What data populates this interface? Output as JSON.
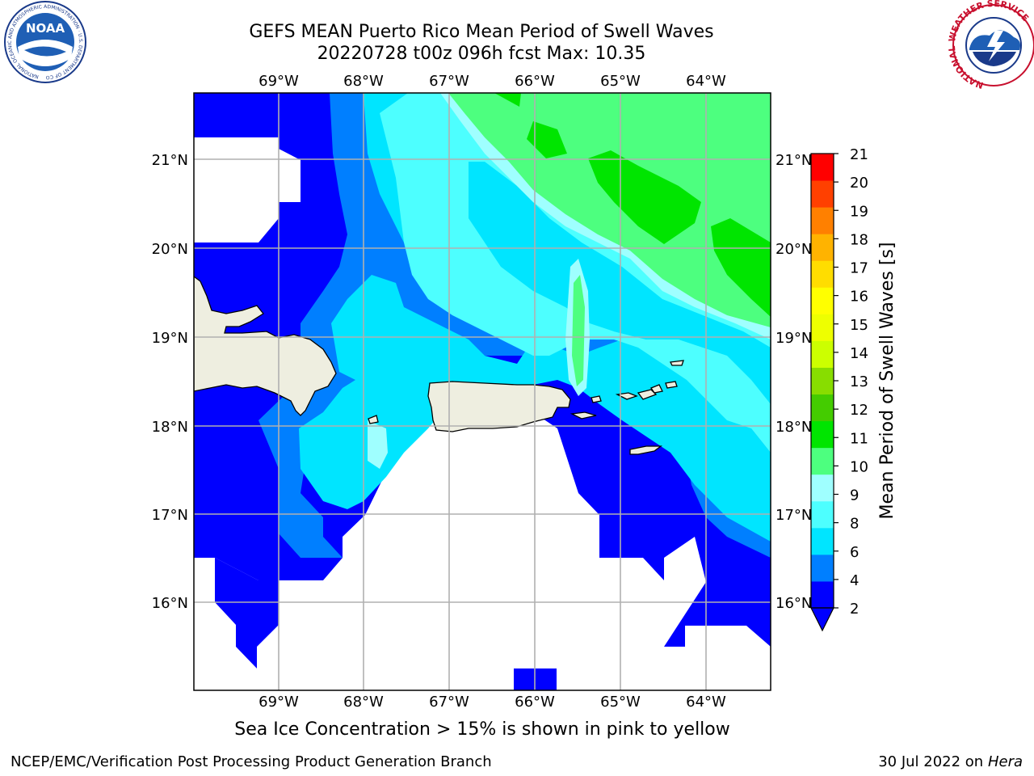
{
  "header": {
    "title_line1": "GEFS MEAN Puerto Rico Mean Period of Swell Waves",
    "title_line2": "20220728 t00z 096h fcst   Max: 10.35"
  },
  "logos": {
    "left": {
      "name": "noaa-logo",
      "text": "NOAA",
      "ring_text": "NATIONAL OCEANIC AND ATMOSPHERIC ADMINISTRATION · U.S. DEPARTMENT OF COMMERCE"
    },
    "right": {
      "name": "nws-logo",
      "ring_text": "NATIONAL WEATHER SERVICE"
    }
  },
  "map": {
    "lon_labels": [
      "69°W",
      "68°W",
      "67°W",
      "66°W",
      "65°W",
      "64°W"
    ],
    "lat_labels": [
      "21°N",
      "20°N",
      "19°N",
      "18°N",
      "17°N",
      "16°N"
    ],
    "lon_range": [
      -70.0,
      -63.25
    ],
    "lat_range": [
      15.0,
      21.75
    ],
    "land_color": "#eeeee0",
    "gridlines": true
  },
  "colorbar": {
    "label": "Mean Period of Swell Waves [s]",
    "ticks": [
      "21",
      "20",
      "19",
      "18",
      "17",
      "16",
      "15",
      "14",
      "13",
      "12",
      "11",
      "10",
      "9",
      "8",
      "6",
      "4",
      "2"
    ],
    "levels": [
      2,
      4,
      6,
      8,
      9,
      10,
      11,
      12,
      13,
      14,
      15,
      16,
      17,
      18,
      19,
      20,
      21
    ],
    "colors": [
      "#0000ff",
      "#007fff",
      "#00e5ff",
      "#4dffff",
      "#9fffff",
      "#4dff7f",
      "#00e500",
      "#44cc00",
      "#88dd00",
      "#ccff00",
      "#eeff00",
      "#ffff00",
      "#ffdd00",
      "#ffb300",
      "#ff8000",
      "#ff4000",
      "#ff0000"
    ],
    "extend_min_color": "#0000ff"
  },
  "note": "Sea Ice Concentration > 15% is shown in pink to yellow",
  "footer": {
    "left": "NCEP/EMC/Verification Post Processing Product Generation Branch",
    "right_date": "30 Jul 2022 on ",
    "right_machine": "Hera"
  }
}
